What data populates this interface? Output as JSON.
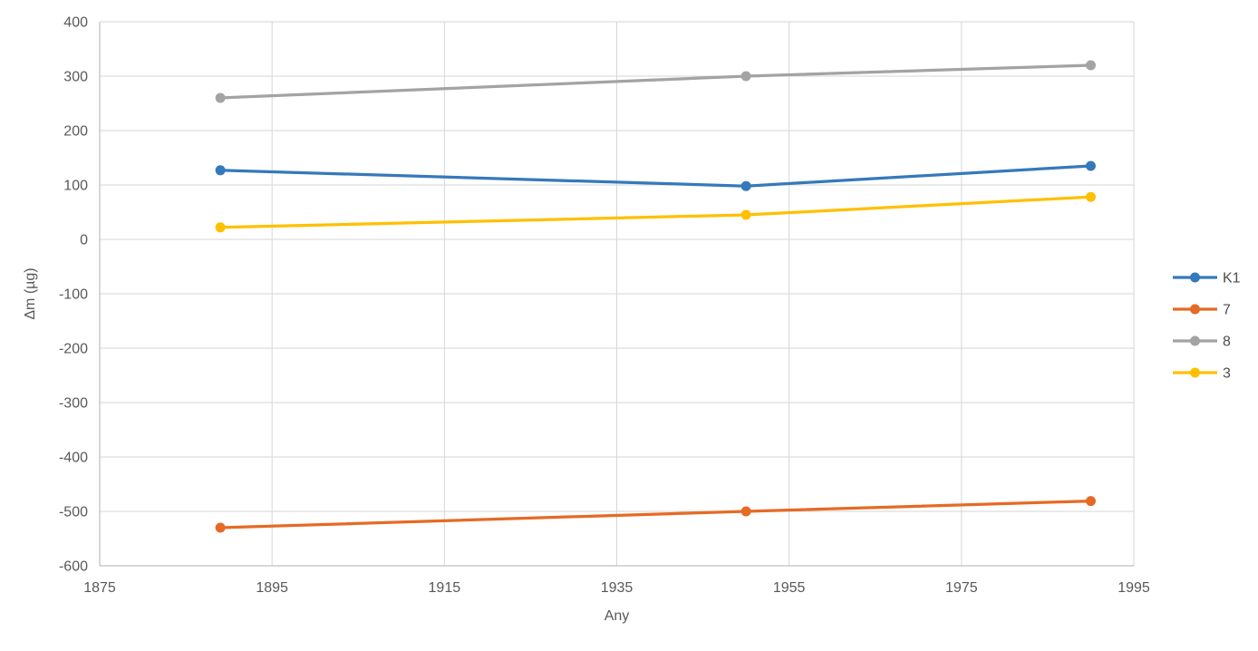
{
  "chart_data": {
    "type": "line",
    "title": "",
    "xlabel": "Any",
    "ylabel": "Δm (µg)",
    "x": [
      1889,
      1950,
      1990
    ],
    "series": [
      {
        "name": "K1",
        "color": "#3579BA",
        "values": [
          127,
          98,
          135
        ]
      },
      {
        "name": "7",
        "color": "#E56A25",
        "values": [
          -530,
          -500,
          -481
        ]
      },
      {
        "name": "8",
        "color": "#A3A3A3",
        "values": [
          260,
          300,
          320
        ]
      },
      {
        "name": "3",
        "color": "#FFC000",
        "values": [
          22,
          45,
          78
        ]
      }
    ],
    "xlim": [
      1875,
      1995
    ],
    "ylim": [
      -600,
      400
    ],
    "x_ticks": [
      1875,
      1895,
      1915,
      1935,
      1955,
      1975,
      1995
    ],
    "y_ticks": [
      400,
      300,
      200,
      100,
      0,
      -100,
      -200,
      -300,
      -400,
      -500,
      -600
    ],
    "grid": true,
    "marker": "circle",
    "legend_position": "right",
    "legend_labels": [
      "K1",
      "7",
      "8",
      "3"
    ]
  },
  "colors": {
    "background": "#ffffff",
    "gridline": "#D6D6D6",
    "axis_line": "#BFBFBF",
    "tick_text": "#595959",
    "legend_text": "#4D4D4D"
  }
}
